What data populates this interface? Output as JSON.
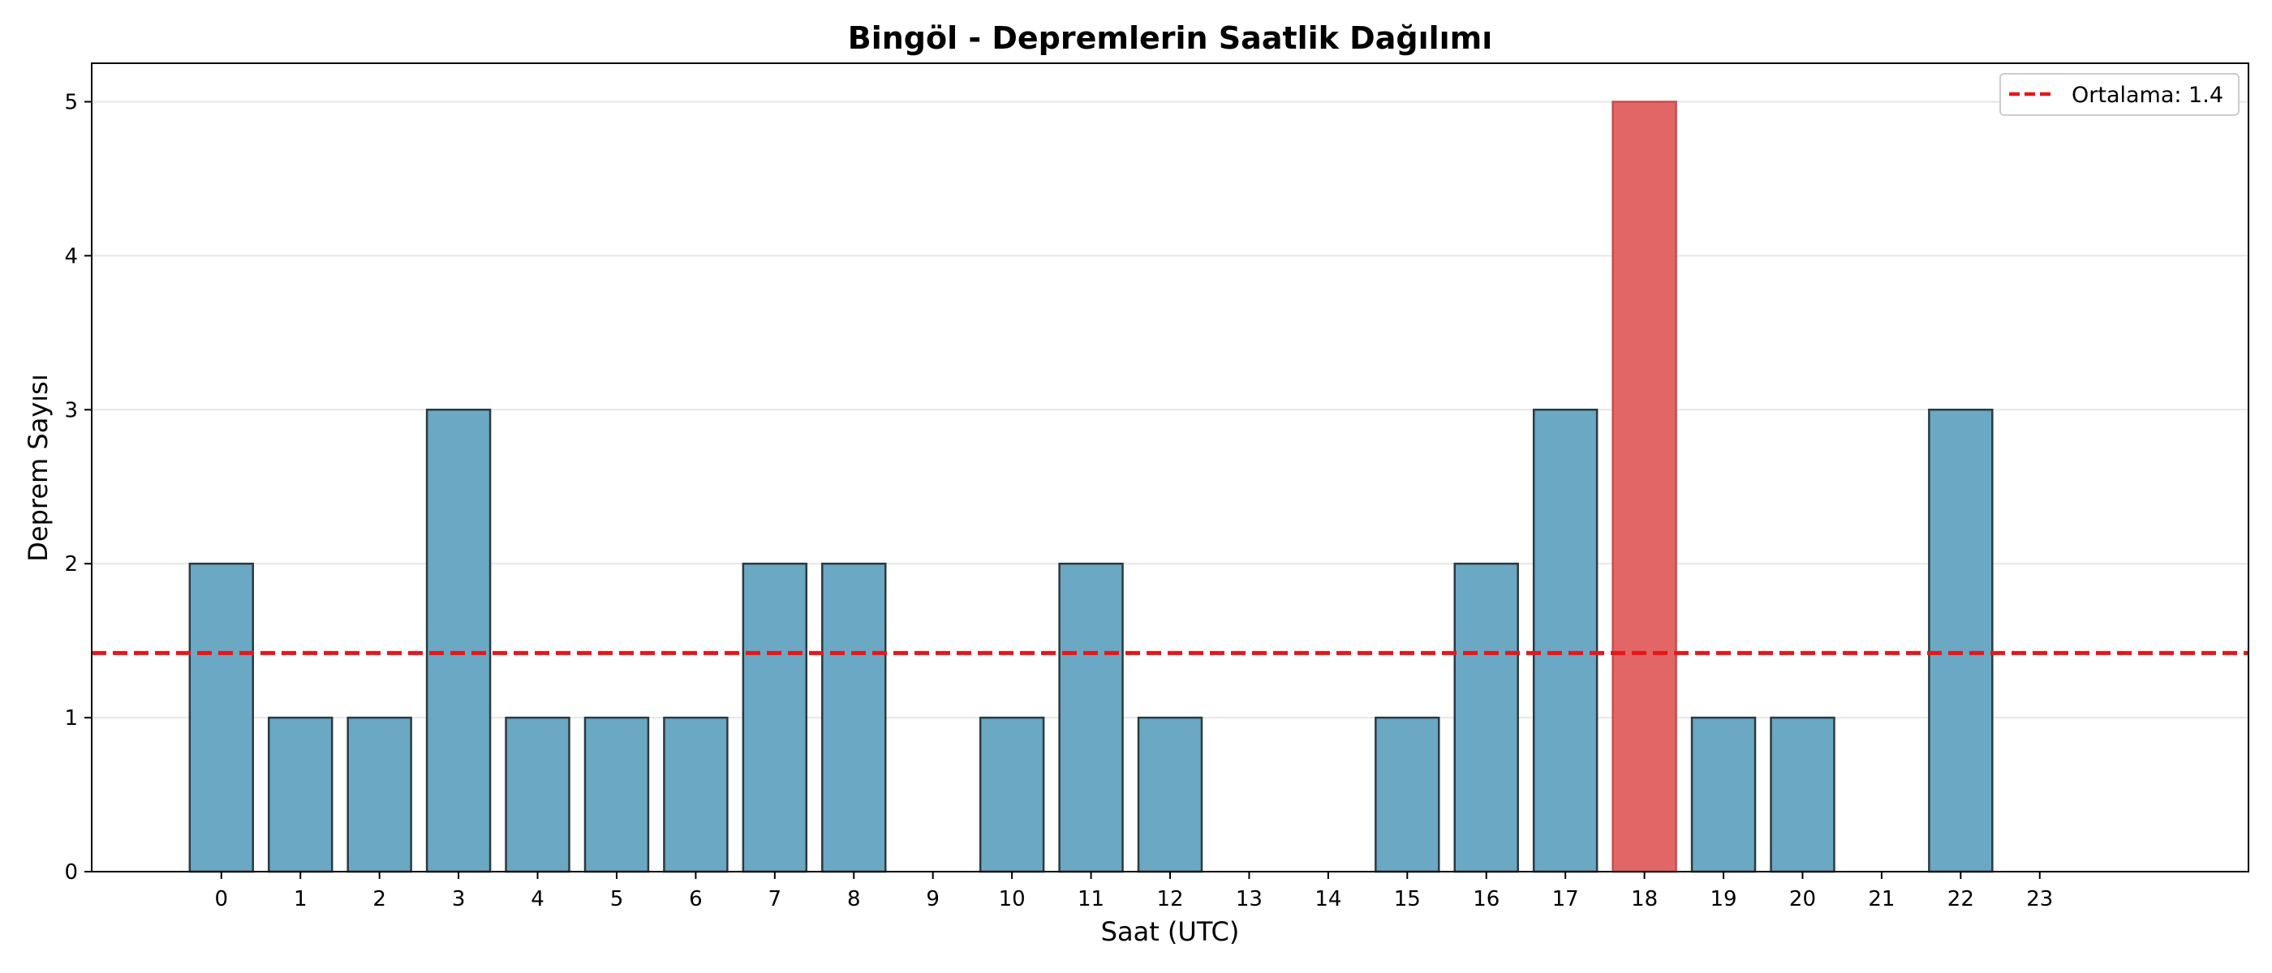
{
  "chart_data": {
    "type": "bar",
    "title": "Bingöl - Depremlerin Saatlik Dağılımı",
    "xlabel": "Saat (UTC)",
    "ylabel": "Deprem Sayısı",
    "categories": [
      "0",
      "1",
      "2",
      "3",
      "4",
      "5",
      "6",
      "7",
      "8",
      "9",
      "10",
      "11",
      "12",
      "13",
      "14",
      "15",
      "16",
      "17",
      "18",
      "19",
      "20",
      "21",
      "22",
      "23"
    ],
    "values": [
      2,
      1,
      1,
      3,
      1,
      1,
      1,
      2,
      2,
      0,
      1,
      2,
      1,
      0,
      0,
      1,
      2,
      3,
      5,
      1,
      1,
      0,
      3,
      0
    ],
    "highlight_index": 18,
    "bar_color": "#6aa8c3",
    "highlight_color": "#e36666",
    "edge_color": "#2b3a42",
    "ylim": [
      0,
      5.25
    ],
    "yticks": [
      "0",
      "1",
      "2",
      "3",
      "4",
      "5"
    ],
    "grid": "y",
    "mean_line": {
      "value": 1.42,
      "label": "Ortalama: 1.4",
      "color": "#e8161a",
      "style": "dashed"
    },
    "legend_position": "top-right"
  }
}
